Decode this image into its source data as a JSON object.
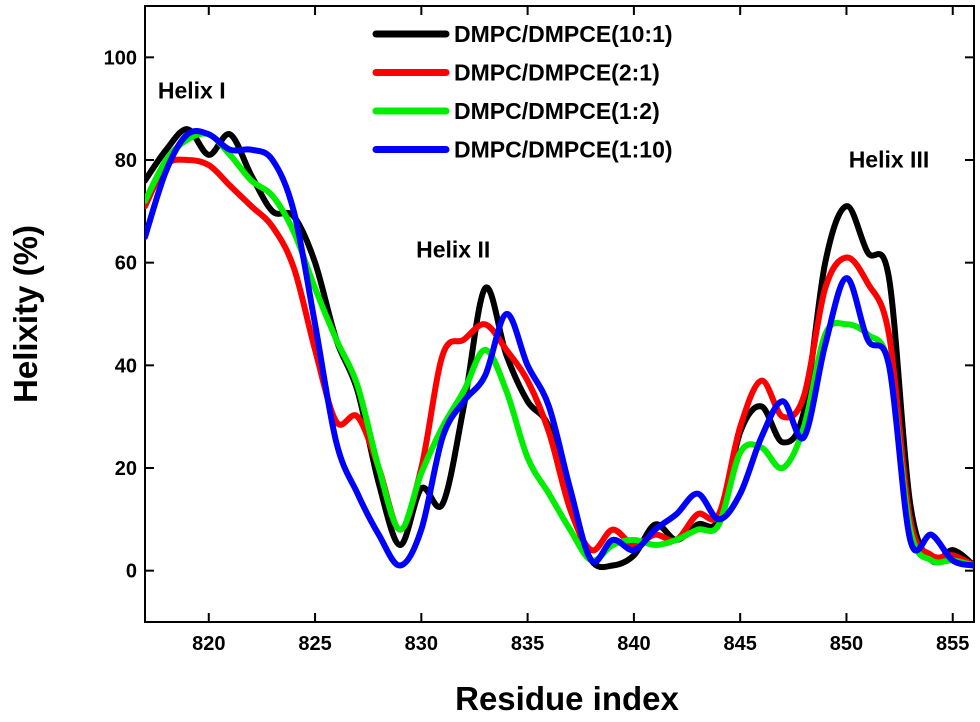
{
  "chart_data": {
    "type": "line",
    "title": "",
    "xlabel": "Residue index",
    "ylabel": "Helixity (%)",
    "xlim": [
      817,
      856
    ],
    "ylim": [
      -10,
      110
    ],
    "xticks": [
      820,
      825,
      830,
      835,
      840,
      845,
      850,
      855
    ],
    "yticks": [
      0,
      20,
      40,
      60,
      80,
      100
    ],
    "grid": false,
    "legend": "top-center",
    "series": [
      {
        "name": "DMPC/DMPCE(10:1)",
        "color": "#000000",
        "x": [
          817,
          818,
          819,
          820,
          821,
          822,
          823,
          824,
          825,
          826,
          827,
          828,
          829,
          830,
          831,
          832,
          833,
          834,
          835,
          836,
          837,
          838,
          839,
          840,
          841,
          842,
          843,
          844,
          845,
          846,
          847,
          848,
          849,
          850,
          851,
          852,
          853,
          854,
          855,
          856
        ],
        "y": [
          76,
          82,
          86,
          81,
          85,
          77,
          70,
          69,
          60,
          45,
          35,
          17,
          5,
          16,
          13,
          32,
          55,
          42,
          33,
          28,
          13,
          2,
          1,
          3,
          9,
          6,
          9,
          10,
          27,
          32,
          25,
          31,
          60,
          71,
          62,
          57,
          13,
          2,
          4,
          1
        ]
      },
      {
        "name": "DMPC/DMPCE(2:1)",
        "color": "#ff0000",
        "x": [
          817,
          818,
          819,
          820,
          821,
          822,
          823,
          824,
          825,
          826,
          827,
          828,
          829,
          830,
          831,
          832,
          833,
          834,
          835,
          836,
          837,
          838,
          839,
          840,
          841,
          842,
          843,
          844,
          845,
          846,
          847,
          848,
          849,
          850,
          851,
          852,
          853,
          854,
          855,
          856
        ],
        "y": [
          71,
          79,
          80,
          79,
          75,
          71,
          67,
          59,
          43,
          29,
          30,
          20,
          8,
          20,
          42,
          45,
          48,
          43,
          37,
          27,
          12,
          4,
          8,
          5,
          7,
          6,
          11,
          11,
          28,
          37,
          30,
          34,
          55,
          61,
          56,
          46,
          10,
          3,
          3,
          1
        ]
      },
      {
        "name": "DMPC/DMPCE(1:2)",
        "color": "#00ee00",
        "x": [
          817,
          818,
          819,
          820,
          821,
          822,
          823,
          824,
          825,
          826,
          827,
          828,
          829,
          830,
          831,
          832,
          833,
          834,
          835,
          836,
          837,
          838,
          839,
          840,
          841,
          842,
          843,
          844,
          845,
          846,
          847,
          848,
          849,
          850,
          851,
          852,
          853,
          854,
          855,
          856
        ],
        "y": [
          72,
          80,
          84,
          85,
          81,
          76,
          73,
          66,
          55,
          45,
          36,
          20,
          8,
          19,
          28,
          35,
          43,
          35,
          22,
          15,
          8,
          2,
          5,
          6,
          5,
          6,
          8,
          9,
          23,
          24,
          20,
          28,
          46,
          48,
          46,
          40,
          8,
          2,
          2,
          1
        ]
      },
      {
        "name": "DMPC/DMPCE(1:10)",
        "color": "#0000ff",
        "x": [
          817,
          818,
          819,
          820,
          821,
          822,
          823,
          824,
          825,
          826,
          827,
          828,
          829,
          830,
          831,
          832,
          833,
          834,
          835,
          836,
          837,
          838,
          839,
          840,
          841,
          842,
          843,
          844,
          845,
          846,
          847,
          848,
          849,
          850,
          851,
          852,
          853,
          854,
          855,
          856
        ],
        "y": [
          65,
          78,
          85,
          85,
          82,
          82,
          80,
          70,
          48,
          25,
          15,
          7,
          1,
          8,
          26,
          33,
          38,
          50,
          40,
          32,
          16,
          2,
          6,
          4,
          8,
          11,
          15,
          10,
          15,
          26,
          33,
          26,
          44,
          57,
          45,
          40,
          6,
          7,
          2,
          1
        ]
      }
    ],
    "annotations": [
      {
        "text": "Helix I",
        "x": 819.2,
        "y": 92
      },
      {
        "text": "Helix II",
        "x": 831.5,
        "y": 61
      },
      {
        "text": "Helix III",
        "x": 852.0,
        "y": 78.5
      }
    ]
  }
}
